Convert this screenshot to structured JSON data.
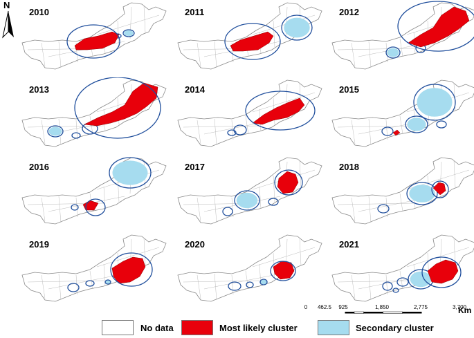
{
  "north_arrow": {
    "label": "N"
  },
  "panels": [
    {
      "year": "2010",
      "most": "m2010",
      "secondary": [
        "s1",
        "s2"
      ]
    },
    {
      "year": "2011",
      "most": "m2011",
      "secondary": [
        "s1"
      ]
    },
    {
      "year": "2012",
      "most": "m2012",
      "secondary": [
        "s1",
        "s2"
      ]
    },
    {
      "year": "2013",
      "most": "m2013",
      "secondary": [
        "s1",
        "s2",
        "s3"
      ]
    },
    {
      "year": "2014",
      "most": "m2014",
      "secondary": [
        "s1",
        "s2"
      ]
    },
    {
      "year": "2015",
      "most": "m2015",
      "secondary": [
        "s1",
        "s2",
        "s3",
        "s4"
      ]
    },
    {
      "year": "2016",
      "most": "m2016",
      "secondary": [
        "s1",
        "s2"
      ]
    },
    {
      "year": "2017",
      "most": "m2017",
      "secondary": [
        "s1",
        "s2",
        "s3"
      ]
    },
    {
      "year": "2018",
      "most": "m2018",
      "secondary": [
        "s1",
        "s2"
      ]
    },
    {
      "year": "2019",
      "most": "m2019",
      "secondary": [
        "s1",
        "s2",
        "s3"
      ]
    },
    {
      "year": "2020",
      "most": "m2020",
      "secondary": [
        "s1",
        "s2",
        "s3"
      ]
    },
    {
      "year": "2021",
      "most": "m2021",
      "secondary": [
        "s1",
        "s2",
        "s3",
        "s4"
      ]
    }
  ],
  "scale": {
    "ticks": [
      "0",
      "462.5",
      "925",
      "1,850",
      "2,775",
      "3,700"
    ],
    "unit": "Km"
  },
  "legend": {
    "no_data": "No data",
    "most_likely": "Most likely cluster",
    "secondary": "Secondary cluster"
  },
  "colors": {
    "no_data": "#ffffff",
    "most_likely": "#e8000b",
    "secondary": "#a6dcef",
    "circle": "#1f4e9c",
    "outline": "#888888"
  }
}
